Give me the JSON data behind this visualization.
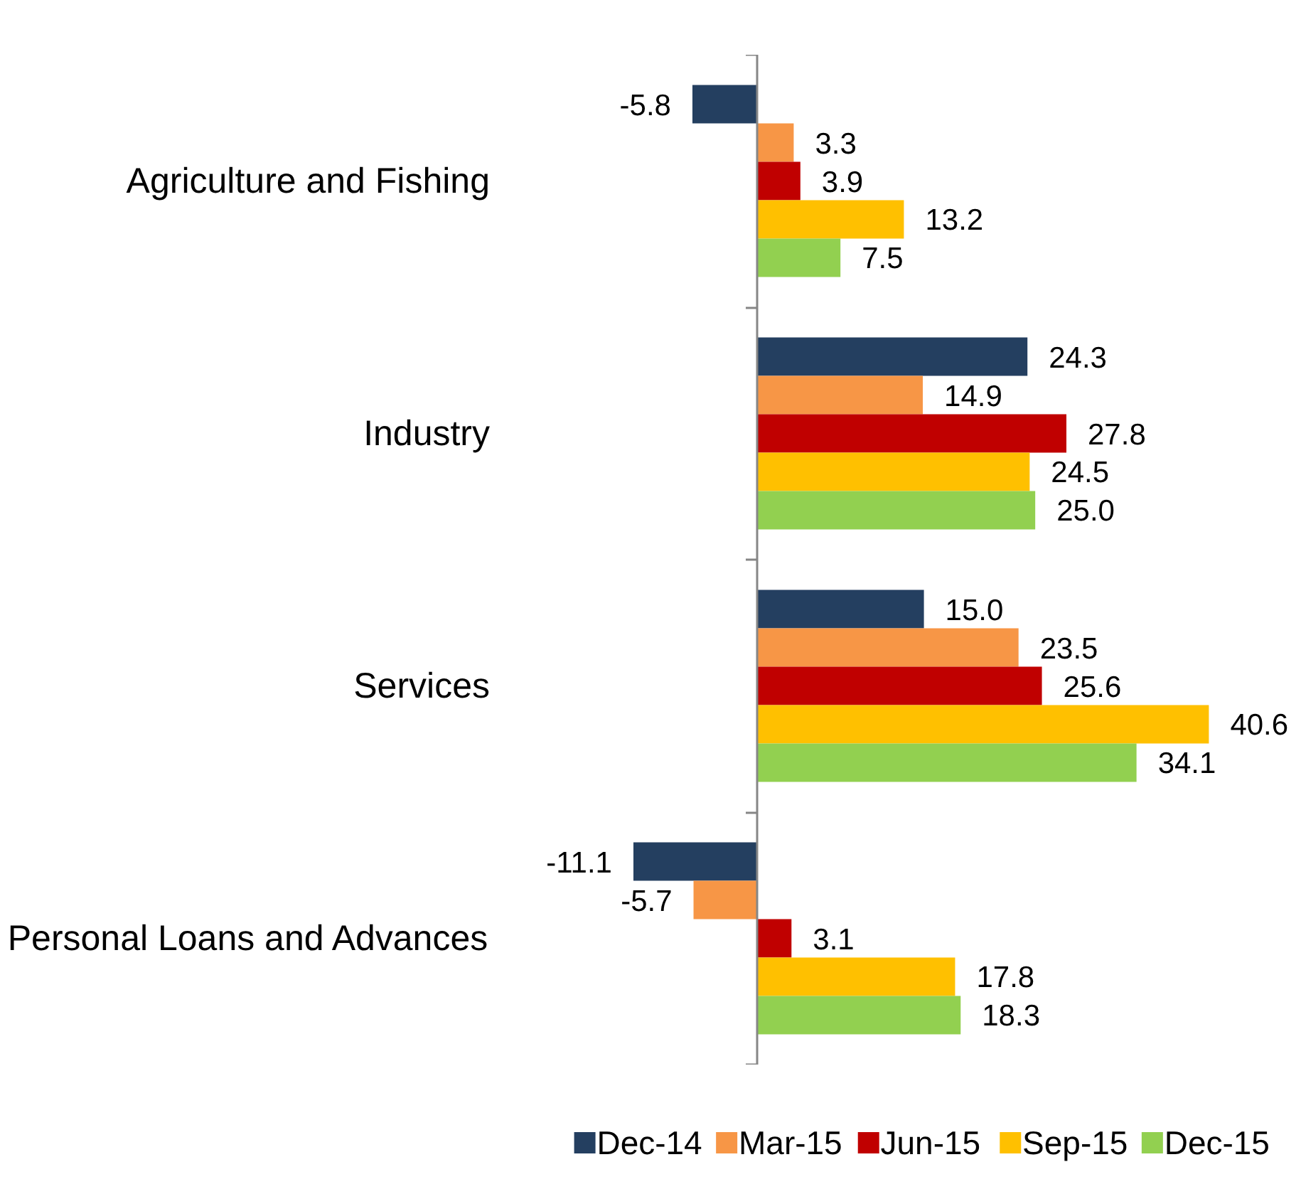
{
  "chart_data": {
    "type": "bar",
    "orientation": "horizontal",
    "categories": [
      "Agriculture and Fishing",
      "Industry",
      "Services",
      "Personal Loans and Advances"
    ],
    "series": [
      {
        "name": "Dec-14",
        "color": "#243f60",
        "values": [
          -5.8,
          24.3,
          15,
          -11.1
        ],
        "value_labels": [
          "-5.8",
          "24.3",
          "15.0",
          "-11.1"
        ]
      },
      {
        "name": "Mar-15",
        "color": "#f79646",
        "values": [
          3.3,
          14.9,
          23.5,
          -5.7
        ],
        "value_labels": [
          "3.3",
          "14.9",
          "23.5",
          "-5.7"
        ]
      },
      {
        "name": "Jun-15",
        "color": "#c00000",
        "values": [
          3.9,
          27.8,
          25.6,
          3.1
        ],
        "value_labels": [
          "3.9",
          "27.8",
          "25.6",
          "3.1"
        ]
      },
      {
        "name": "Sep-15",
        "color": "#ffc000",
        "values": [
          13.2,
          24.5,
          40.6,
          17.8
        ],
        "value_labels": [
          "13.2",
          "24.5",
          "40.6",
          "17.8"
        ]
      },
      {
        "name": "Dec-15",
        "color": "#92d050",
        "values": [
          7.5,
          25,
          34.1,
          18.3
        ],
        "value_labels": [
          "7.5",
          "25.0",
          "34.1",
          "18.3"
        ]
      }
    ],
    "legend": "bottom",
    "tick_labels": "y"
  }
}
